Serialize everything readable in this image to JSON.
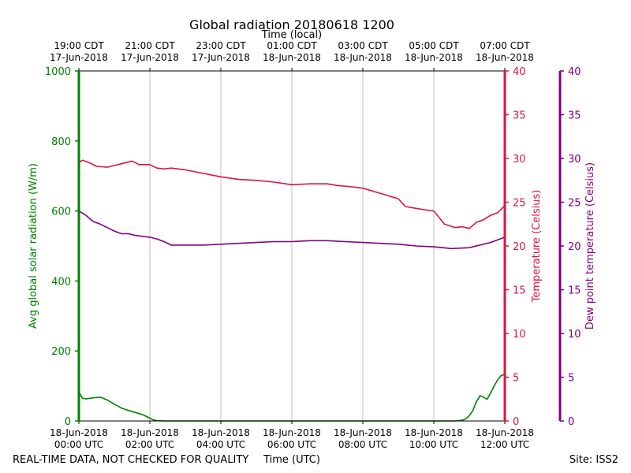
{
  "chart_data": {
    "type": "line",
    "title": "Global radiation 20180618 1200",
    "top_axis_label": "Time (local)",
    "bottom_axis_label": "Time (UTC)",
    "footer_left": "REAL-TIME DATA, NOT CHECKED FOR QUALITY",
    "footer_right": "Site: ISS2",
    "x_range_hours": [
      0,
      12
    ],
    "grid": "vertical",
    "bottom_ticks": [
      {
        "hour": 0,
        "line1": "18-Jun-2018",
        "line2": "00:00 UTC"
      },
      {
        "hour": 2,
        "line1": "18-Jun-2018",
        "line2": "02:00 UTC"
      },
      {
        "hour": 4,
        "line1": "18-Jun-2018",
        "line2": "04:00 UTC"
      },
      {
        "hour": 6,
        "line1": "18-Jun-2018",
        "line2": "06:00 UTC"
      },
      {
        "hour": 8,
        "line1": "18-Jun-2018",
        "line2": "08:00 UTC"
      },
      {
        "hour": 10,
        "line1": "18-Jun-2018",
        "line2": "10:00 UTC"
      },
      {
        "hour": 12,
        "line1": "18-Jun-2018",
        "line2": "12:00 UTC"
      }
    ],
    "top_ticks": [
      {
        "hour": 0,
        "line1": "19:00 CDT",
        "line2": "17-Jun-2018"
      },
      {
        "hour": 2,
        "line1": "21:00 CDT",
        "line2": "17-Jun-2018"
      },
      {
        "hour": 4,
        "line1": "23:00 CDT",
        "line2": "17-Jun-2018"
      },
      {
        "hour": 6,
        "line1": "01:00 CDT",
        "line2": "18-Jun-2018"
      },
      {
        "hour": 8,
        "line1": "03:00 CDT",
        "line2": "18-Jun-2018"
      },
      {
        "hour": 10,
        "line1": "05:00 CDT",
        "line2": "18-Jun-2018"
      },
      {
        "hour": 12,
        "line1": "07:00 CDT",
        "line2": "18-Jun-2018"
      }
    ],
    "axes": {
      "radiation": {
        "label": "Avg global solar radiation (W/m)",
        "ylim": [
          0,
          1000
        ],
        "ticks": [
          0,
          200,
          400,
          600,
          800,
          1000
        ],
        "color": "#008000"
      },
      "temperature": {
        "label": "Temperature (Celsius)",
        "ylim": [
          0,
          40
        ],
        "ticks": [
          0,
          5,
          10,
          15,
          20,
          25,
          30,
          35,
          40
        ],
        "color": "#dc143c"
      },
      "dewpoint": {
        "label": "Dew point temperature (Celsius)",
        "ylim": [
          0,
          40
        ],
        "ticks": [
          0,
          5,
          10,
          15,
          20,
          25,
          30,
          35,
          40
        ],
        "color": "#800080"
      }
    },
    "series": [
      {
        "name": "Avg global solar radiation",
        "axis": "radiation",
        "color": "#008000",
        "x": [
          0,
          0.1,
          0.2,
          0.4,
          0.6,
          0.8,
          1.0,
          1.2,
          1.4,
          1.6,
          1.8,
          2.0,
          2.1,
          2.2,
          2.4,
          3,
          4,
          5,
          6,
          7,
          8,
          9,
          10,
          10.6,
          10.8,
          10.9,
          11.0,
          11.1,
          11.2,
          11.3,
          11.4,
          11.5,
          11.6,
          11.7,
          11.8,
          11.9,
          12.0
        ],
        "values": [
          83,
          65,
          63,
          66,
          68,
          60,
          48,
          37,
          30,
          24,
          18,
          8,
          3,
          1,
          0,
          0,
          0,
          0,
          0,
          0,
          0,
          0,
          0,
          0,
          2,
          6,
          15,
          30,
          55,
          72,
          68,
          62,
          80,
          100,
          118,
          130,
          133
        ]
      },
      {
        "name": "Temperature",
        "axis": "temperature",
        "color": "#dc143c",
        "x": [
          0,
          0.1,
          0.3,
          0.5,
          0.8,
          1.0,
          1.2,
          1.5,
          1.7,
          2.0,
          2.2,
          2.4,
          2.6,
          3.0,
          3.5,
          4.0,
          4.5,
          5.0,
          5.5,
          6.0,
          6.5,
          7.0,
          7.3,
          7.6,
          8.0,
          8.5,
          9.0,
          9.2,
          9.5,
          9.8,
          10.0,
          10.3,
          10.6,
          10.8,
          11.0,
          11.2,
          11.4,
          11.6,
          11.8,
          12.0
        ],
        "values": [
          29.5,
          29.8,
          29.5,
          29.1,
          29.0,
          29.2,
          29.4,
          29.7,
          29.3,
          29.3,
          28.9,
          28.8,
          28.9,
          28.7,
          28.3,
          27.9,
          27.6,
          27.5,
          27.3,
          27.0,
          27.1,
          27.1,
          26.9,
          26.8,
          26.6,
          26.0,
          25.4,
          24.5,
          24.3,
          24.1,
          24.0,
          22.5,
          22.1,
          22.2,
          22.0,
          22.7,
          23.0,
          23.5,
          23.8,
          24.6
        ]
      },
      {
        "name": "Dew point temperature",
        "axis": "dewpoint",
        "color": "#800080",
        "x": [
          0,
          0.2,
          0.4,
          0.6,
          0.8,
          1.0,
          1.2,
          1.4,
          1.6,
          1.8,
          2.0,
          2.2,
          2.4,
          2.6,
          3.0,
          3.5,
          4.0,
          4.5,
          5.0,
          5.5,
          6.0,
          6.5,
          7.0,
          7.5,
          8.0,
          8.5,
          9.0,
          9.5,
          10.0,
          10.5,
          11.0,
          11.3,
          11.6,
          11.8,
          12.0
        ],
        "values": [
          24.0,
          23.5,
          22.8,
          22.5,
          22.1,
          21.7,
          21.4,
          21.4,
          21.2,
          21.1,
          21.0,
          20.8,
          20.5,
          20.1,
          20.1,
          20.1,
          20.2,
          20.3,
          20.4,
          20.5,
          20.5,
          20.6,
          20.6,
          20.5,
          20.4,
          20.3,
          20.2,
          20.0,
          19.9,
          19.7,
          19.8,
          20.1,
          20.4,
          20.7,
          21.0
        ]
      }
    ]
  }
}
